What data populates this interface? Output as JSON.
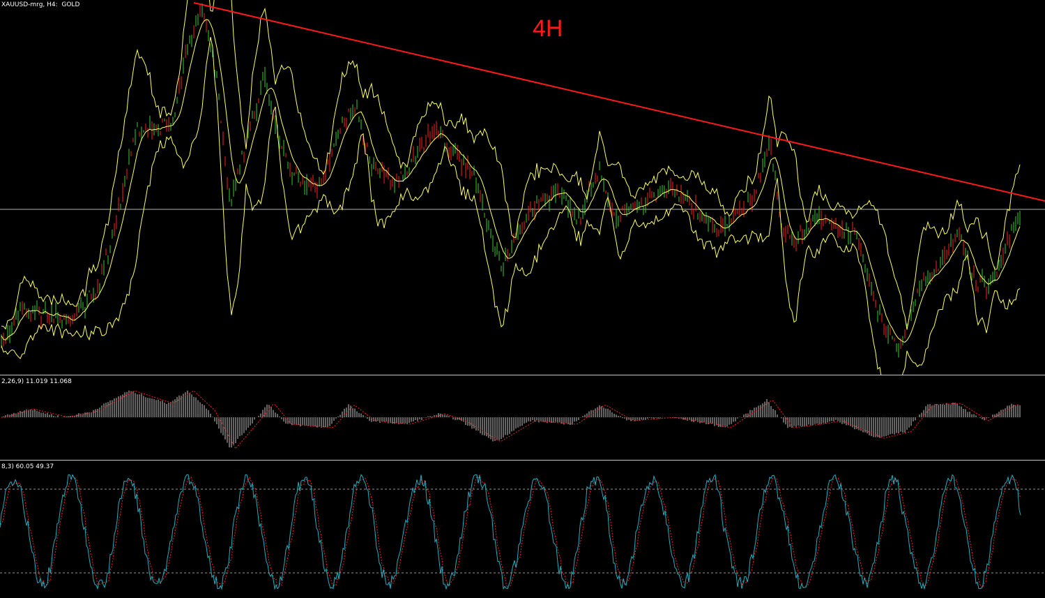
{
  "chart": {
    "title": "XAUUSD-mrg, H4:  GOLD",
    "timeframe_annotation": "4H",
    "colors": {
      "background": "#000000",
      "bull_candle": "#2fd12f",
      "bear_candle": "#ff2020",
      "bollinger": "#ffff66",
      "trendline": "#ff1a1a",
      "level_line": "#b4b4b4",
      "macd_hist": "#c8c8c8",
      "macd_signal": "#ff2020",
      "stoch_main": "#20b0c0",
      "stoch_signal": "#ff2020",
      "stoch_levels": "#9a9a9a",
      "separator": "#c8c8c8"
    }
  },
  "macd_panel": {
    "label": "2,26,9) 11.019 11.068"
  },
  "stoch_panel": {
    "label": "8,3) 60.05 49.37"
  }
}
